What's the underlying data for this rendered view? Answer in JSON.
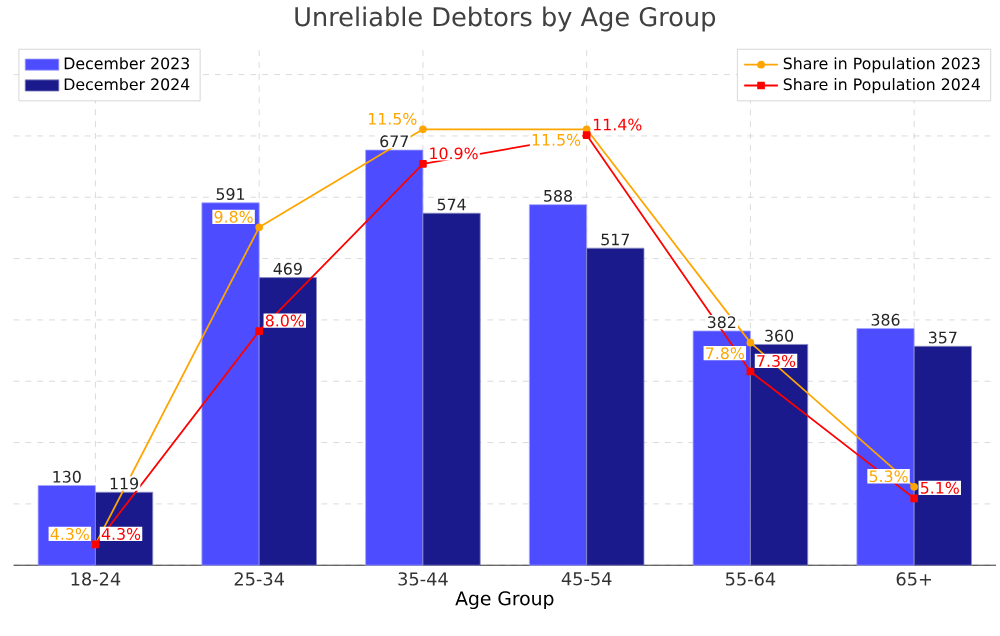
{
  "chart_data": {
    "type": "bar",
    "title": "Unreliable Debtors by Age Group",
    "xlabel": "Age Group",
    "categories": [
      "18-24",
      "25-34",
      "35-44",
      "45-54",
      "55-64",
      "65+"
    ],
    "series": [
      {
        "name": "December 2023",
        "color": "#4d4dff",
        "values": [
          130,
          591,
          677,
          588,
          382,
          386
        ]
      },
      {
        "name": "December 2024",
        "color": "#1a1a8c",
        "values": [
          119,
          469,
          574,
          517,
          360,
          357
        ]
      },
      {
        "name": "Share in Population 2023",
        "type": "line",
        "axis": "y2",
        "color": "#ffa500",
        "marker": "circle",
        "values": [
          4.3,
          9.8,
          11.5,
          11.5,
          7.8,
          5.3
        ],
        "value_labels": [
          "4.3%",
          "9.8%",
          "11.5%",
          "11.5%",
          "7.8%",
          "5.3%"
        ]
      },
      {
        "name": "Share in Population 2024",
        "type": "line",
        "axis": "y2",
        "color": "#ff0000",
        "marker": "square",
        "values": [
          4.3,
          8.0,
          10.9,
          11.4,
          7.3,
          5.1
        ],
        "value_labels": [
          "4.3%",
          "8.0%",
          "10.9%",
          "11.4%",
          "7.3%",
          "5.1%"
        ]
      }
    ],
    "data_labels": true,
    "grid": true,
    "legend": "top",
    "tick_labels": "x",
    "line_style": "solid"
  }
}
